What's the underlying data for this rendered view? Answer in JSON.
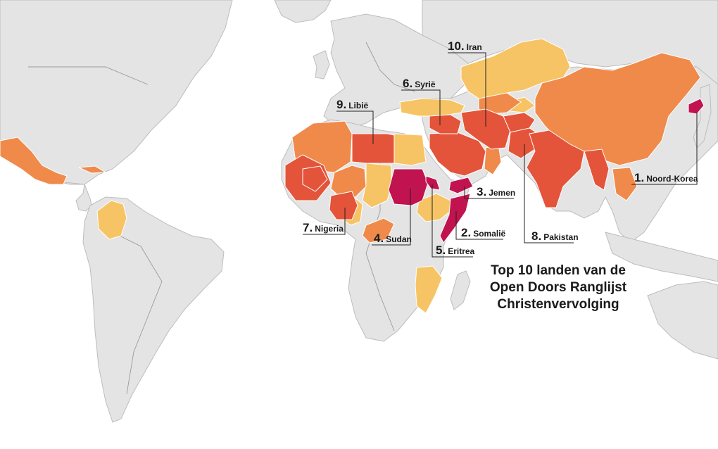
{
  "title_lines": [
    "Top 10 landen van de",
    "Open Doors Ranglijst",
    "Christenvervolging"
  ],
  "colors": {
    "water": "#ffffff",
    "land": "#e4e4e4",
    "extreme": "#c0134f",
    "very_high": "#e4543a",
    "high": "#f08a4b",
    "moderate": "#f7c465"
  },
  "labels": [
    {
      "rank": "1.",
      "name": "Noord-Korea"
    },
    {
      "rank": "2.",
      "name": "Somalië"
    },
    {
      "rank": "3.",
      "name": "Jemen"
    },
    {
      "rank": "4.",
      "name": "Sudan"
    },
    {
      "rank": "5.",
      "name": "Eritrea"
    },
    {
      "rank": "6.",
      "name": "Syrië"
    },
    {
      "rank": "7.",
      "name": "Nigeria"
    },
    {
      "rank": "8.",
      "name": "Pakistan"
    },
    {
      "rank": "9.",
      "name": "Libië"
    },
    {
      "rank": "10.",
      "name": "Iran"
    }
  ]
}
